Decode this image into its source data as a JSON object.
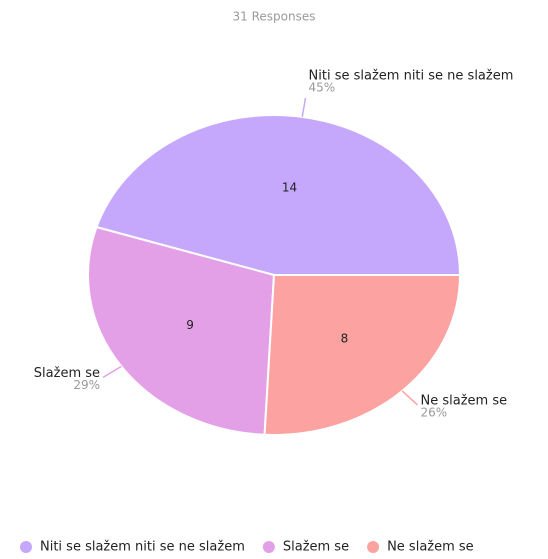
{
  "chart_data": {
    "type": "pie",
    "subtitle": "31 Responses",
    "categories": [
      "Niti se slažem niti se ne slažem",
      "Slažem se",
      "Ne slažem se"
    ],
    "values": [
      14,
      9,
      8
    ],
    "percent_labels": [
      "45%",
      "29%",
      "26%"
    ],
    "colors": [
      "#c5a8fc",
      "#e3a0e6",
      "#fca3a1"
    ],
    "legend": "bottom"
  }
}
